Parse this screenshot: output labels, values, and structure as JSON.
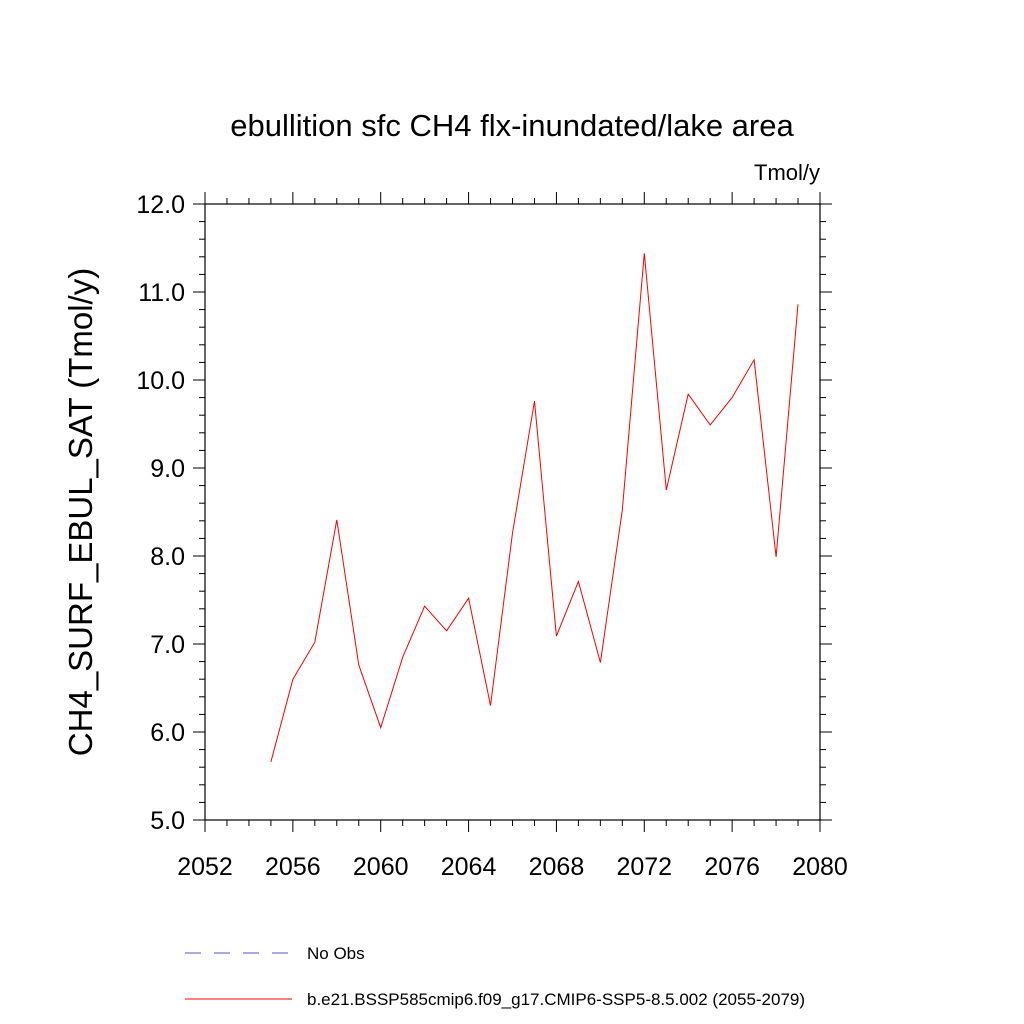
{
  "chart_data": {
    "type": "line",
    "title": "ebullition sfc CH4 flx-inundated/lake area",
    "units_label": "Tmol/y",
    "ylabel": "CH4_SURF_EBUL_SAT  (Tmol/y)",
    "xlabel": "",
    "xlim": [
      2052,
      2080
    ],
    "ylim": [
      5.0,
      12.0
    ],
    "x_ticks": [
      2052,
      2056,
      2060,
      2064,
      2068,
      2072,
      2076,
      2080
    ],
    "x_tick_labels": [
      "2052",
      "2056",
      "2060",
      "2064",
      "2068",
      "2072",
      "2076",
      "2080"
    ],
    "y_ticks": [
      5.0,
      6.0,
      7.0,
      8.0,
      9.0,
      10.0,
      11.0,
      12.0
    ],
    "y_tick_labels": [
      "5.0",
      "6.0",
      "7.0",
      "8.0",
      "9.0",
      "10.0",
      "11.0",
      "12.0"
    ],
    "legend_placement": "bottom",
    "series": [
      {
        "name": "No Obs",
        "color": "#5a4fcf",
        "dash": "dashed",
        "x": [],
        "y": []
      },
      {
        "name": "b.e21.BSSP585cmip6.f09_g17.CMIP6-SSP5-8.5.002 (2055-2079)",
        "color": "#ff0000",
        "dash": "solid",
        "x": [
          2055,
          2056,
          2057,
          2058,
          2059,
          2060,
          2061,
          2062,
          2063,
          2064,
          2065,
          2066,
          2067,
          2068,
          2069,
          2070,
          2071,
          2072,
          2073,
          2074,
          2075,
          2076,
          2077,
          2078,
          2079
        ],
        "y": [
          5.66,
          6.6,
          7.02,
          8.41,
          6.76,
          6.05,
          6.85,
          7.43,
          7.15,
          7.52,
          6.3,
          8.26,
          9.76,
          7.09,
          7.71,
          6.79,
          8.52,
          11.44,
          8.75,
          9.84,
          9.49,
          9.8,
          10.23,
          7.99,
          10.86
        ]
      }
    ]
  }
}
